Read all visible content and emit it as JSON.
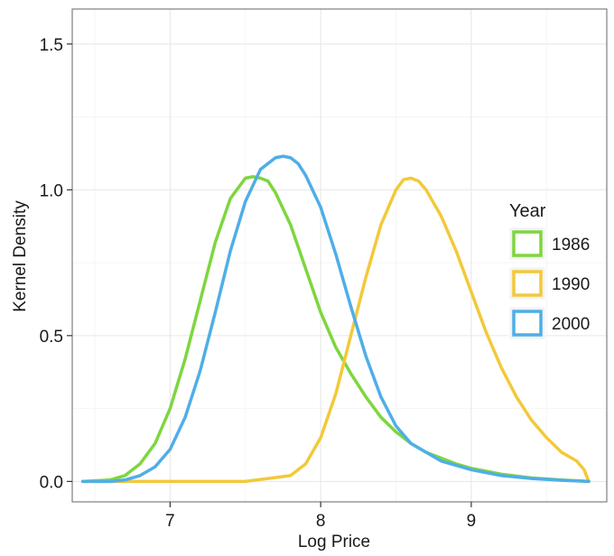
{
  "chart_data": {
    "type": "line",
    "title": "",
    "xlabel": "Log Price",
    "ylabel": "Kernel Density",
    "xlim": [
      6.35,
      9.9
    ],
    "ylim": [
      -0.07,
      1.62
    ],
    "xticks": [
      7,
      8,
      9
    ],
    "yticks": [
      0.0,
      0.5,
      1.0,
      1.5
    ],
    "xtick_labels": [
      "7",
      "8",
      "9"
    ],
    "ytick_labels": [
      "0.0",
      "0.5",
      "1.0",
      "1.5"
    ],
    "grid": true,
    "legend": {
      "title": "Year",
      "placement": "right"
    },
    "series": [
      {
        "name": "1986",
        "color": "#7ed63f",
        "x": [
          6.42,
          6.6,
          6.7,
          6.8,
          6.9,
          7.0,
          7.1,
          7.2,
          7.3,
          7.4,
          7.5,
          7.55,
          7.6,
          7.65,
          7.7,
          7.8,
          7.9,
          8.0,
          8.1,
          8.2,
          8.3,
          8.4,
          8.5,
          8.6,
          8.7,
          8.8,
          8.9,
          9.0,
          9.2,
          9.4,
          9.6,
          9.78
        ],
        "y": [
          0.0,
          0.005,
          0.02,
          0.06,
          0.13,
          0.25,
          0.42,
          0.62,
          0.82,
          0.97,
          1.04,
          1.045,
          1.04,
          1.03,
          0.99,
          0.88,
          0.73,
          0.58,
          0.46,
          0.37,
          0.29,
          0.22,
          0.17,
          0.13,
          0.1,
          0.08,
          0.06,
          0.045,
          0.025,
          0.012,
          0.005,
          0.0
        ]
      },
      {
        "name": "1990",
        "color": "#f2c93a",
        "x": [
          6.42,
          7.5,
          7.8,
          7.9,
          8.0,
          8.1,
          8.2,
          8.3,
          8.4,
          8.5,
          8.55,
          8.6,
          8.65,
          8.7,
          8.8,
          8.9,
          9.0,
          9.1,
          9.2,
          9.3,
          9.4,
          9.5,
          9.6,
          9.7,
          9.75,
          9.78
        ],
        "y": [
          0.0,
          0.0,
          0.02,
          0.06,
          0.15,
          0.3,
          0.5,
          0.7,
          0.88,
          1.0,
          1.035,
          1.04,
          1.03,
          1.0,
          0.91,
          0.79,
          0.65,
          0.51,
          0.39,
          0.29,
          0.21,
          0.15,
          0.1,
          0.07,
          0.04,
          0.0
        ]
      },
      {
        "name": "2000",
        "color": "#4faee8",
        "x": [
          6.42,
          6.6,
          6.7,
          6.8,
          6.9,
          7.0,
          7.1,
          7.2,
          7.3,
          7.4,
          7.5,
          7.6,
          7.7,
          7.75,
          7.8,
          7.85,
          7.9,
          8.0,
          8.1,
          8.2,
          8.3,
          8.4,
          8.5,
          8.6,
          8.8,
          9.0,
          9.2,
          9.4,
          9.6,
          9.78
        ],
        "y": [
          0.0,
          0.0,
          0.005,
          0.02,
          0.05,
          0.11,
          0.22,
          0.38,
          0.58,
          0.79,
          0.96,
          1.07,
          1.11,
          1.115,
          1.11,
          1.09,
          1.05,
          0.94,
          0.78,
          0.6,
          0.43,
          0.29,
          0.19,
          0.13,
          0.07,
          0.04,
          0.02,
          0.01,
          0.004,
          0.0
        ]
      }
    ]
  }
}
